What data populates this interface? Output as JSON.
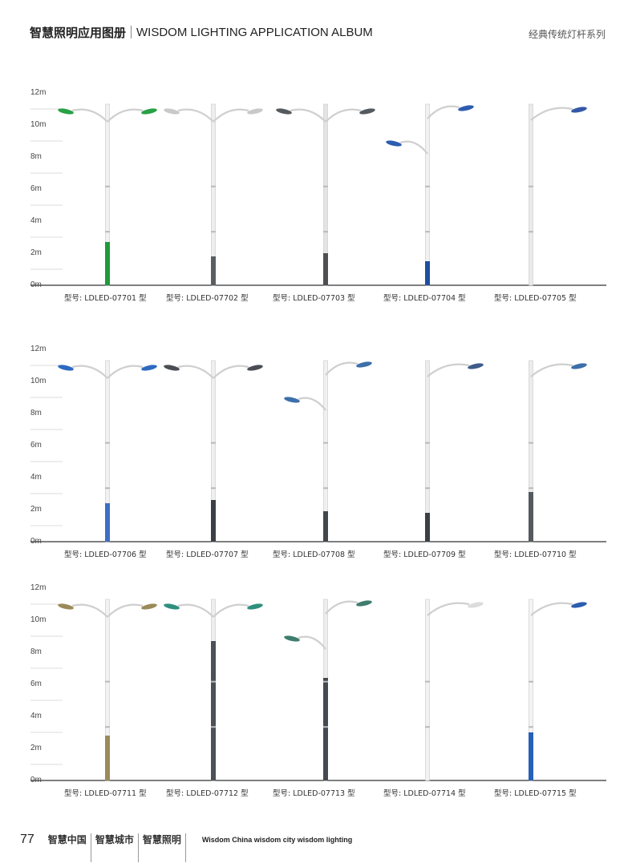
{
  "header": {
    "title_cn": "智慧照明应用图册",
    "title_en": "WISDOM LIGHTING APPLICATION ALBUM",
    "series": "经典传统灯杆系列"
  },
  "axis_labels": [
    "12m",
    "10m",
    "8m",
    "6m",
    "4m",
    "2m",
    "0m"
  ],
  "rows": [
    {
      "models": [
        {
          "caption": "型号: LDLED-07701 型",
          "style": "double",
          "pole": "#f1f1f1",
          "base": "#1f9a3a",
          "lamp": "#28a045",
          "base_height_m": 2.7
        },
        {
          "caption": "型号: LDLED-07702 型",
          "style": "double",
          "pole": "#eeeeee",
          "base": "#595e63",
          "lamp": "#c9c9c9",
          "base_height_m": 1.8
        },
        {
          "caption": "型号: LDLED-07703 型",
          "style": "double",
          "pole": "#e4e4e4",
          "base": "#4d4f52",
          "lamp": "#555a5e",
          "base_height_m": 2.0
        },
        {
          "caption": "型号: LDLED-07704 型",
          "style": "double-uneven",
          "pole": "#f1f1f1",
          "base": "#1d4fa0",
          "lamp": "#2d5db0",
          "base_height_m": 1.5
        },
        {
          "caption": "型号: LDLED-07705 型",
          "style": "single",
          "pole": "#eaeaea",
          "base": "#dedede",
          "lamp": "#3358a8",
          "base_height_m": 0
        }
      ]
    },
    {
      "models": [
        {
          "caption": "型号: LDLED-07706 型",
          "style": "double",
          "pole": "#f1f1f1",
          "base": "#3d6fc4",
          "lamp": "#2d6ac0",
          "base_height_m": 2.4
        },
        {
          "caption": "型号: LDLED-07707 型",
          "style": "double",
          "pole": "#efefef",
          "base": "#3b4046",
          "lamp": "#4a4e54",
          "base_height_m": 2.6
        },
        {
          "caption": "型号: LDLED-07708 型",
          "style": "double-uneven",
          "pole": "#f0f0f0",
          "base": "#42474c",
          "lamp": "#3d6fa8",
          "base_height_m": 1.9
        },
        {
          "caption": "型号: LDLED-07709 型",
          "style": "single",
          "pole": "#ececec",
          "base": "#3b4046",
          "lamp": "#3e5c8a",
          "base_height_m": 1.8
        },
        {
          "caption": "型号: LDLED-07710 型",
          "style": "single",
          "pole": "#ececec",
          "base": "#545a60",
          "lamp": "#3d6fa8",
          "base_height_m": 3.1
        }
      ]
    },
    {
      "models": [
        {
          "caption": "型号: LDLED-07711 型",
          "style": "double",
          "pole": "#f2f2f2",
          "base": "#9c8a5a",
          "lamp": "#9b8a58",
          "base_height_m": 2.8
        },
        {
          "caption": "型号: LDLED-07712 型",
          "style": "double",
          "pole": "#eeeeee",
          "base": "#4b5157",
          "lamp": "#2f8f7d",
          "base_height_m": 8.7
        },
        {
          "caption": "型号: LDLED-07713 型",
          "style": "double-uneven",
          "pole": "#ededed",
          "base": "#454a50",
          "lamp": "#3f7d6e",
          "base_height_m": 6.4
        },
        {
          "caption": "型号: LDLED-07714 型",
          "style": "single",
          "pole": "#f2f2f2",
          "base": "#f2f2f2",
          "lamp": "#dcdcdc",
          "base_height_m": 0
        },
        {
          "caption": "型号: LDLED-07715 型",
          "style": "single",
          "pole": "#f4f4f4",
          "base": "#2760b8",
          "lamp": "#2d5db0",
          "base_height_m": 3.0
        }
      ]
    }
  ],
  "footer": {
    "page_number": "77",
    "items": [
      "智慧中国",
      "智慧城市",
      "智慧照明"
    ],
    "tagline": "Wisdom China  wisdom city  wisdom lighting"
  }
}
